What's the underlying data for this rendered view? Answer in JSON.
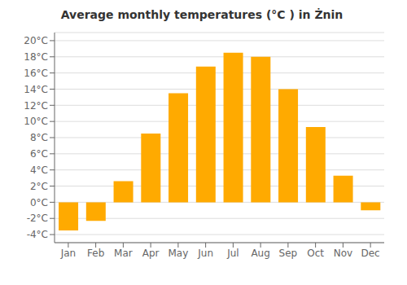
{
  "chart_data": {
    "type": "bar",
    "title": "Average monthly temperatures (°C ) in Żnin",
    "categories": [
      "Jan",
      "Feb",
      "Mar",
      "Apr",
      "May",
      "Jun",
      "Jul",
      "Aug",
      "Sep",
      "Oct",
      "Nov",
      "Dec"
    ],
    "values": [
      -3.5,
      -2.3,
      2.6,
      8.5,
      13.5,
      16.8,
      18.5,
      18.0,
      14.0,
      9.3,
      3.3,
      -1.0
    ],
    "color": "#FFAA00",
    "ylim": [
      -5,
      21
    ],
    "yticks": [
      {
        "value": -4,
        "label": "-4°C"
      },
      {
        "value": -2,
        "label": "-2°C"
      },
      {
        "value": 0,
        "label": "0°C"
      },
      {
        "value": 2,
        "label": "2°C"
      },
      {
        "value": 4,
        "label": "4°C"
      },
      {
        "value": 6,
        "label": "6°C"
      },
      {
        "value": 8,
        "label": "8°C"
      },
      {
        "value": 10,
        "label": "10°C"
      },
      {
        "value": 12,
        "label": "12°C"
      },
      {
        "value": 14,
        "label": "14°C"
      },
      {
        "value": 16,
        "label": "16°C"
      },
      {
        "value": 18,
        "label": "18°C"
      },
      {
        "value": 20,
        "label": "20°C"
      }
    ],
    "grid": true
  }
}
